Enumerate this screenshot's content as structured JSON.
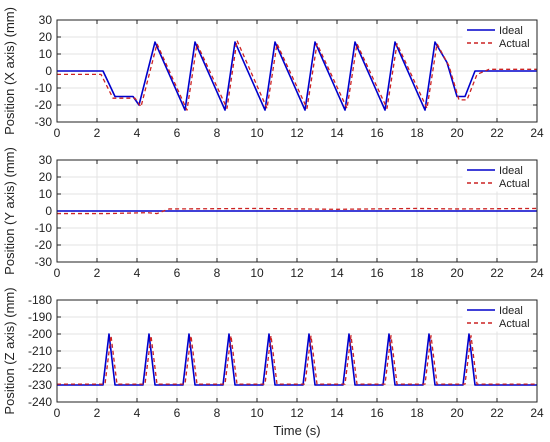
{
  "chart_data": [
    {
      "type": "line",
      "ylabel": "Position (X axis) (mm)",
      "xlim": [
        0,
        24
      ],
      "ylim": [
        -30,
        30
      ],
      "xticks": [
        0,
        2,
        4,
        6,
        8,
        10,
        12,
        14,
        16,
        18,
        20,
        22,
        24
      ],
      "yticks": [
        -30,
        -20,
        -10,
        0,
        10,
        20,
        30
      ],
      "grid": true,
      "legend": "top-right",
      "series": [
        {
          "name": "Ideal",
          "color": "#0000cc",
          "style": "solid",
          "x": [
            0,
            2.3,
            2.9,
            3.8,
            4.1,
            4.9,
            6.4,
            6.9,
            8.4,
            8.9,
            10.4,
            10.9,
            12.4,
            12.9,
            14.4,
            14.9,
            16.4,
            16.9,
            18.4,
            18.9,
            19.5,
            20.0,
            20.4,
            20.9,
            24
          ],
          "y": [
            0,
            0,
            -15,
            -15,
            -20,
            17,
            -23,
            17,
            -23,
            17,
            -23,
            17,
            -23,
            17,
            -23,
            17,
            -23,
            17,
            -23,
            17,
            5,
            -15,
            -15,
            0,
            0
          ]
        },
        {
          "name": "Actual",
          "color": "#cc2222",
          "style": "dashed",
          "x": [
            0,
            2.2,
            2.8,
            3.9,
            4.2,
            5.0,
            6.5,
            7.0,
            8.5,
            9.0,
            10.5,
            11.0,
            12.5,
            13.0,
            14.5,
            15.0,
            16.5,
            17.0,
            18.5,
            19.0,
            19.6,
            20.1,
            20.5,
            21.0,
            21.6,
            24
          ],
          "y": [
            -2,
            -2,
            -16,
            -16,
            -21,
            16,
            -23,
            16,
            -22,
            18,
            -22,
            16,
            -22,
            16,
            -22,
            16,
            -22,
            16,
            -22,
            16,
            3,
            -17,
            -17,
            -2,
            1,
            1
          ]
        }
      ]
    },
    {
      "type": "line",
      "ylabel": "Position (Y axis) (mm)",
      "xlim": [
        0,
        24
      ],
      "ylim": [
        -30,
        30
      ],
      "xticks": [
        0,
        2,
        4,
        6,
        8,
        10,
        12,
        14,
        16,
        18,
        20,
        22,
        24
      ],
      "yticks": [
        -30,
        -20,
        -10,
        0,
        10,
        20,
        30
      ],
      "grid": true,
      "legend": "top-right",
      "series": [
        {
          "name": "Ideal",
          "color": "#0000cc",
          "style": "solid",
          "x": [
            0,
            24
          ],
          "y": [
            0,
            0
          ]
        },
        {
          "name": "Actual",
          "color": "#cc2222",
          "style": "dashed",
          "x": [
            0,
            2.5,
            4.5,
            5.0,
            5.6,
            10,
            14,
            18,
            20,
            24
          ],
          "y": [
            -1.5,
            -1.5,
            -1.0,
            -1.5,
            1.2,
            1.5,
            1.0,
            1.5,
            1.2,
            1.5
          ]
        }
      ]
    },
    {
      "type": "line",
      "ylabel": "Position (Z axis) (mm)",
      "xlabel": "Time (s)",
      "xlim": [
        0,
        24
      ],
      "ylim": [
        -240,
        -180
      ],
      "xticks": [
        0,
        2,
        4,
        6,
        8,
        10,
        12,
        14,
        16,
        18,
        20,
        22,
        24
      ],
      "yticks": [
        -240,
        -230,
        -220,
        -210,
        -200,
        -190,
        -180
      ],
      "grid": true,
      "legend": "top-right",
      "series": [
        {
          "name": "Ideal",
          "color": "#0000cc",
          "style": "solid",
          "x": [
            0,
            2.3,
            2.6,
            2.9,
            4.3,
            4.6,
            4.9,
            6.3,
            6.6,
            6.9,
            8.3,
            8.6,
            8.9,
            10.3,
            10.6,
            10.9,
            12.3,
            12.6,
            12.9,
            14.3,
            14.6,
            14.9,
            16.3,
            16.6,
            16.9,
            18.3,
            18.6,
            18.9,
            20.3,
            20.6,
            20.9,
            24
          ],
          "y": [
            -230,
            -230,
            -200,
            -230,
            -230,
            -200,
            -230,
            -230,
            -200,
            -230,
            -230,
            -200,
            -230,
            -230,
            -200,
            -230,
            -230,
            -200,
            -230,
            -230,
            -200,
            -230,
            -230,
            -200,
            -230,
            -230,
            -200,
            -230,
            -230,
            -200,
            -230,
            -230
          ]
        },
        {
          "name": "Actual",
          "color": "#cc2222",
          "style": "dashed",
          "x": [
            0,
            2.4,
            2.7,
            3.0,
            4.4,
            4.7,
            5.0,
            6.4,
            6.7,
            7.0,
            8.4,
            8.7,
            9.0,
            10.4,
            10.7,
            11.0,
            12.4,
            12.7,
            13.0,
            14.4,
            14.7,
            15.0,
            16.4,
            16.7,
            17.0,
            18.4,
            18.7,
            19.0,
            20.4,
            20.7,
            21.0,
            24
          ],
          "y": [
            -229.5,
            -229.5,
            -201,
            -229.5,
            -229.5,
            -201,
            -229.5,
            -229.5,
            -201,
            -229.5,
            -229.5,
            -201,
            -229.5,
            -229.5,
            -201,
            -229.5,
            -229.5,
            -201,
            -229.5,
            -229.5,
            -201,
            -229.5,
            -229.5,
            -201,
            -229.5,
            -229.5,
            -201,
            -229.5,
            -229.5,
            -201,
            -229.5,
            -229.5
          ]
        }
      ]
    }
  ]
}
